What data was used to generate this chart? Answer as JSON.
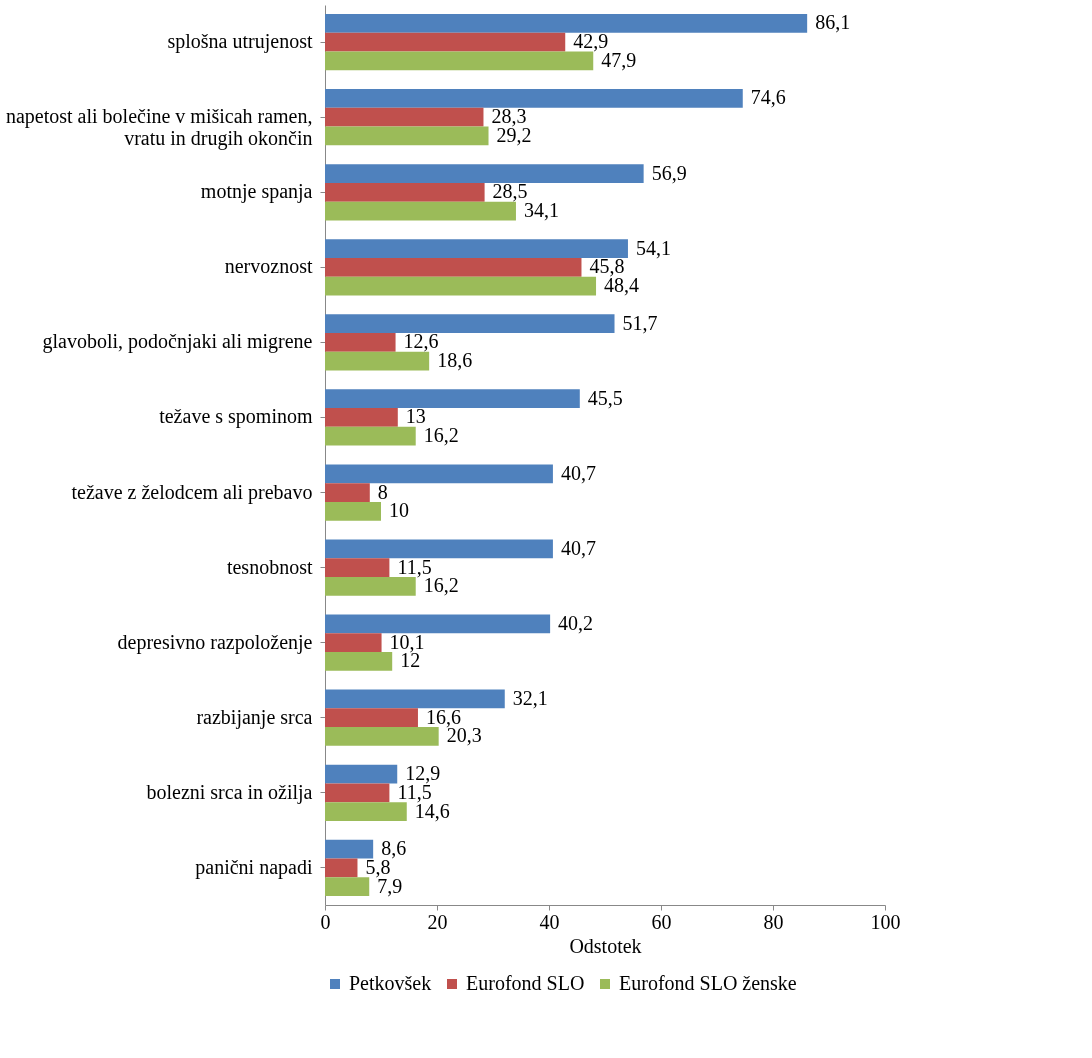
{
  "chart_data": {
    "type": "bar",
    "orientation": "horizontal",
    "xlabel": "Odstotek",
    "categories": [
      "splošna utrujenost",
      "napetost ali bolečine v mišicah ramen, vratu in drugih okončin",
      "motnje spanja",
      "nervoznost",
      "glavoboli, podočnjaki ali migrene",
      "težave s spominom",
      "težave z želodcem ali prebavo",
      "tesnobnost",
      "depresivno razpoloženje",
      "razbijanje srca",
      "bolezni srca in ožilja",
      "panični napadi"
    ],
    "series": [
      {
        "name": "Petkovšek",
        "color": "#4f81bd",
        "values": [
          86.1,
          74.6,
          56.9,
          54.1,
          51.7,
          45.5,
          40.7,
          40.7,
          40.2,
          32.1,
          12.9,
          8.6
        ],
        "value_labels": [
          "86,1",
          "74,6",
          "56,9",
          "54,1",
          "51,7",
          "45,5",
          "40,7",
          "40,7",
          "40,2",
          "32,1",
          "12,9",
          "8,6"
        ]
      },
      {
        "name": "Eurofond SLO",
        "color": "#c0504d",
        "values": [
          42.9,
          28.3,
          28.5,
          45.8,
          12.6,
          13,
          8,
          11.5,
          10.1,
          16.6,
          11.5,
          5.8
        ],
        "value_labels": [
          "42,9",
          "28,3",
          "28,5",
          "45,8",
          "12,6",
          "13",
          "8",
          "11,5",
          "10,1",
          "16,6",
          "11,5",
          "5,8"
        ]
      },
      {
        "name": "Eurofond SLO ženske",
        "color": "#9bbb59",
        "values": [
          47.9,
          29.2,
          34.1,
          48.4,
          18.6,
          16.2,
          10,
          16.2,
          12,
          20.3,
          14.6,
          7.9
        ],
        "value_labels": [
          "47,9",
          "29,2",
          "34,1",
          "48,4",
          "18,6",
          "16,2",
          "10",
          "16,2",
          "12",
          "20,3",
          "14,6",
          "7,9"
        ]
      }
    ],
    "xlim": [
      0,
      100
    ],
    "xticks": [
      0,
      20,
      40,
      60,
      80,
      100
    ],
    "legend": "bottom",
    "grid": false
  }
}
